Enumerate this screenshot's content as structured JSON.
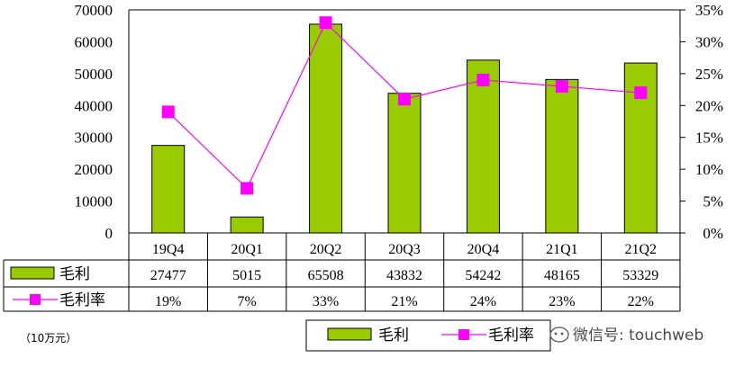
{
  "chart_data": {
    "type": "bar",
    "categories": [
      "19Q4",
      "20Q1",
      "20Q2",
      "20Q3",
      "20Q4",
      "21Q1",
      "21Q2"
    ],
    "series": [
      {
        "name": "毛利",
        "kind": "bar",
        "axis": "left",
        "color": "#99cc00",
        "values": [
          27477,
          5015,
          65508,
          43832,
          54242,
          48165,
          53329
        ]
      },
      {
        "name": "毛利率",
        "kind": "line",
        "axis": "right",
        "color": "#ff00ff",
        "values": [
          19,
          7,
          33,
          21,
          24,
          23,
          22
        ]
      }
    ],
    "ylim": [
      0,
      70000
    ],
    "y_ticks": [
      "0",
      "10000",
      "20000",
      "30000",
      "40000",
      "50000",
      "60000",
      "70000"
    ],
    "y2lim": [
      0,
      35
    ],
    "y2_ticks": [
      "0%",
      "5%",
      "10%",
      "15%",
      "20%",
      "25%",
      "30%",
      "35%"
    ],
    "table": {
      "row1_label": "毛利",
      "row1_values": [
        "27477",
        "5015",
        "65508",
        "43832",
        "54242",
        "48165",
        "53329"
      ],
      "row2_label": "毛利率",
      "row2_values": [
        "19%",
        "7%",
        "33%",
        "21%",
        "24%",
        "23%",
        "22%"
      ]
    },
    "legend": {
      "placement": "bottom",
      "items": [
        "毛利",
        "毛利率"
      ]
    },
    "unit_note": "（10万元）",
    "grid": false
  },
  "watermark": "微信号: touchweb"
}
